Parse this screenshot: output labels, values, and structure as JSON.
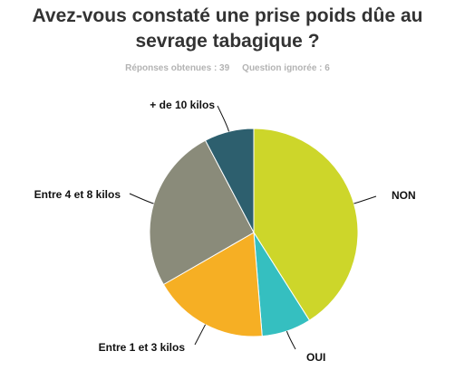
{
  "title_line1": "Avez-vous constaté une prise poids dûe au",
  "title_line2": "sevrage tabagique ?",
  "stats": {
    "responses": "Réponses obtenues : 39",
    "ignored": "Question ignorée : 6"
  },
  "chart_data": {
    "type": "pie",
    "title": "Avez-vous constaté une prise poids dûe au sevrage tabagique ?",
    "start_angle": "top, clockwise",
    "slices": [
      {
        "label": "NON",
        "value": 16,
        "color": "#cdd62a"
      },
      {
        "label": "OUI",
        "value": 3,
        "color": "#35bfc0"
      },
      {
        "label": "Entre 1 et 3 kilos",
        "value": 7,
        "color": "#f6af24"
      },
      {
        "label": "Entre 4 et 8 kilos",
        "value": 10,
        "color": "#8a8b7a"
      },
      {
        "label": "+ de 10 kilos",
        "value": 3,
        "color": "#2d5f6e"
      }
    ]
  }
}
